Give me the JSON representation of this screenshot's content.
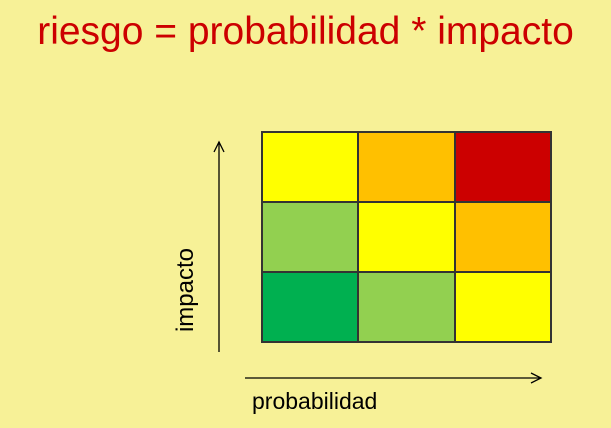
{
  "title": "riesgo = probabilidad * impacto",
  "axes": {
    "y_label": "impacto",
    "x_label": "probabilidad"
  },
  "grid": {
    "rows": [
      [
        "#FFFF00",
        "#FFC000",
        "#CC0000"
      ],
      [
        "#92D050",
        "#FFFF00",
        "#FFC000"
      ],
      [
        "#00B050",
        "#92D050",
        "#FFFF00"
      ]
    ]
  },
  "colors": {
    "background": "#F7F197",
    "title": "#CC0000"
  }
}
